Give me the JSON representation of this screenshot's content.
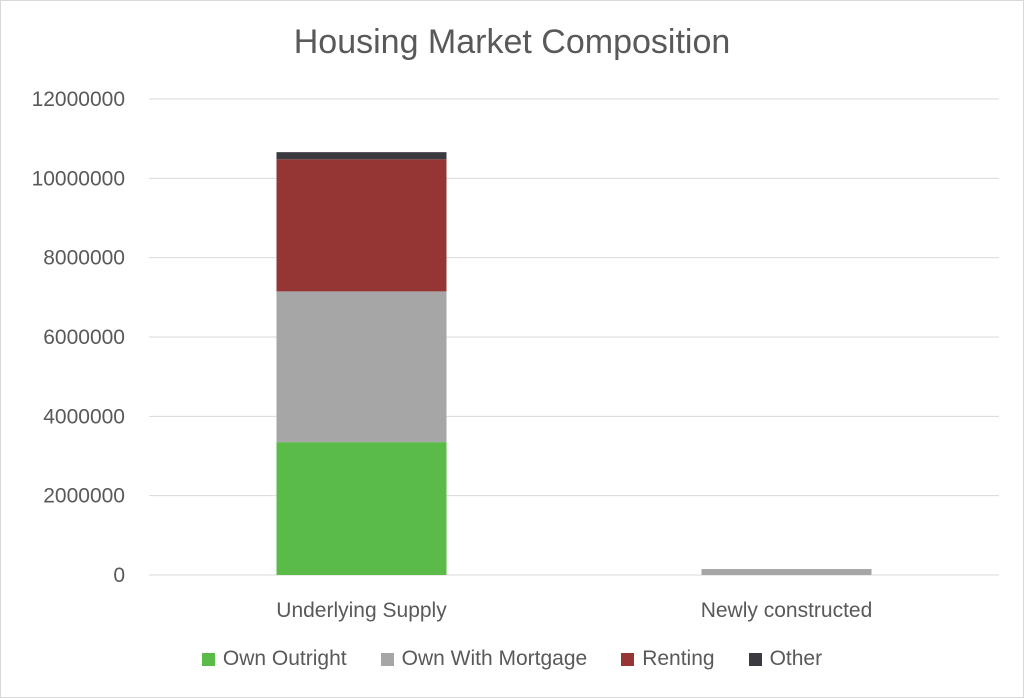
{
  "chart_data": {
    "type": "bar",
    "stacked": true,
    "title": "Housing Market Composition",
    "categories": [
      "Underlying Supply",
      "Newly constructed"
    ],
    "ylim": [
      0,
      12000000
    ],
    "yticks": [
      0,
      2000000,
      4000000,
      6000000,
      8000000,
      10000000,
      12000000
    ],
    "ytick_labels": [
      "0",
      "2000000",
      "4000000",
      "6000000",
      "8000000",
      "10000000",
      "12000000"
    ],
    "grid": true,
    "legend_position": "bottom",
    "series": [
      {
        "name": "Own Outright",
        "color": "#5bbb49",
        "values": [
          3350000,
          0
        ]
      },
      {
        "name": "Own With Mortgage",
        "color": "#a6a6a6",
        "values": [
          3800000,
          150000
        ]
      },
      {
        "name": "Renting",
        "color": "#963634",
        "values": [
          3330000,
          0
        ]
      },
      {
        "name": "Other",
        "color": "#3a3a40",
        "values": [
          180000,
          0
        ]
      }
    ]
  }
}
